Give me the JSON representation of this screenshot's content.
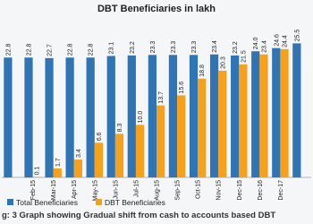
{
  "chart_data": {
    "type": "bar",
    "title": "DBT Beneficiaries in lakh",
    "categories": [
      null,
      "Feb-15",
      "Mar-15",
      "Apr-15",
      "May-15",
      "Jun-15",
      "Jul-15",
      "Aug-15",
      "Sep-15",
      "Oct-15",
      "Nov-15",
      "Dec-15",
      "Dec-16",
      "Dec-17",
      null
    ],
    "series": [
      {
        "name": "Total Beneficiaries",
        "color": "#2f74b5",
        "values": [
          22.8,
          22.8,
          22.7,
          22.8,
          22.8,
          23.1,
          23.2,
          23.3,
          23.3,
          23.3,
          23.4,
          23.2,
          24.0,
          24.6,
          25.5
        ],
        "value_labels": [
          "22.8",
          "22.8",
          "22.7",
          "22.8",
          "22.8",
          "23.1",
          "23.2",
          "23.3",
          "23.3",
          "23.3",
          "23.4",
          "23.2",
          "24.0",
          "24.6",
          "25.5"
        ]
      },
      {
        "name": "DBT Beneficiaries",
        "color": "#f7a11a",
        "values": [
          null,
          0.1,
          1.7,
          3.4,
          6.6,
          8.3,
          10.0,
          13.7,
          15.6,
          18.8,
          20.3,
          21.5,
          23.4,
          24.4,
          null
        ],
        "value_labels": [
          null,
          "0.1",
          "1.7",
          "3.4",
          "6.6",
          "8.3",
          "10.0",
          "13.7",
          "15.6",
          "18.8",
          "20.3",
          "21.5",
          "23.4",
          "24.4",
          null
        ]
      }
    ],
    "ylim": [
      0,
      30
    ],
    "caption": "g: 3 Graph showing Gradual shift from cash to accounts based DBT"
  }
}
